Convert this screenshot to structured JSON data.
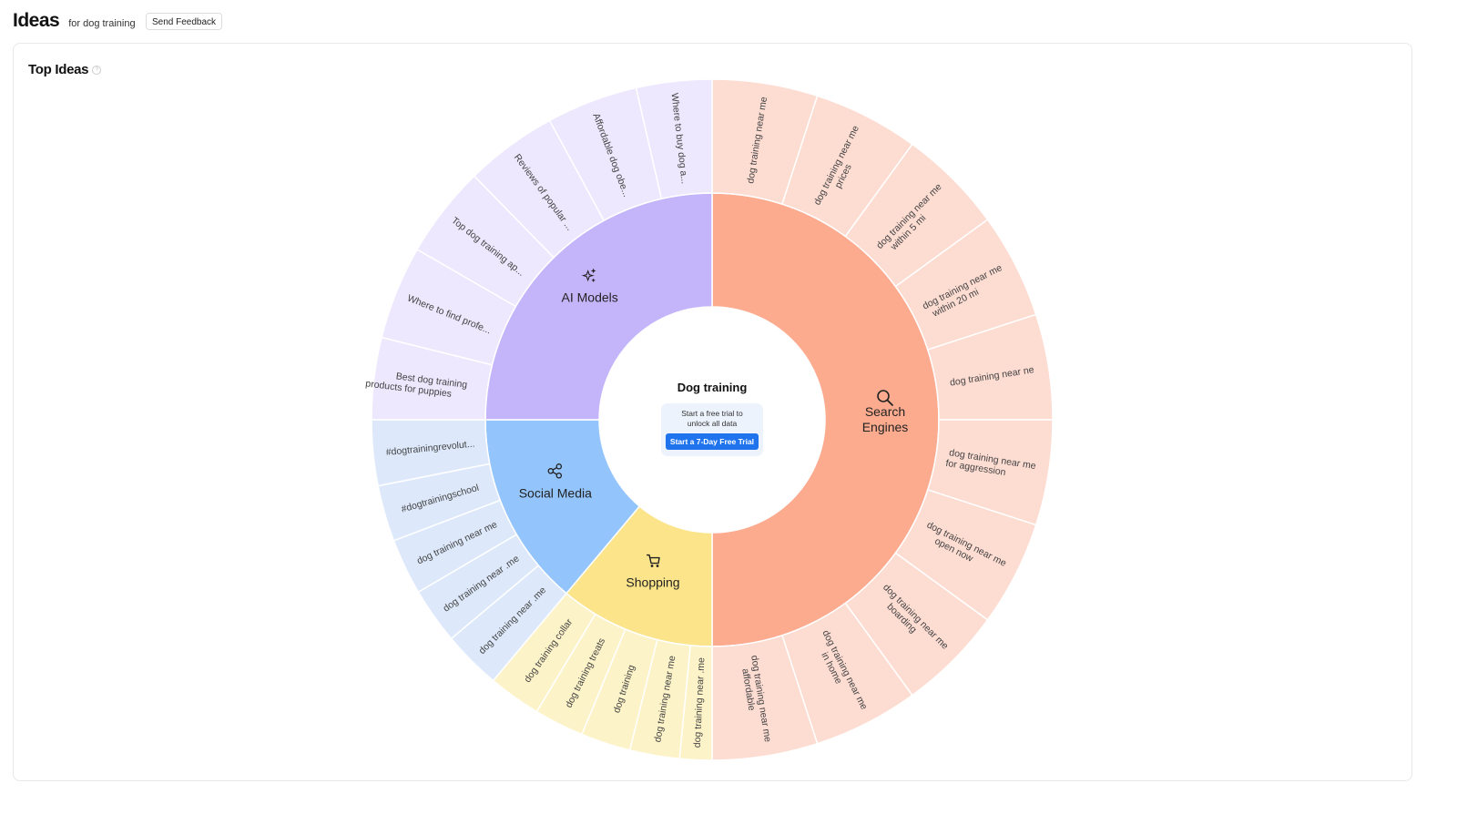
{
  "header": {
    "title": "Ideas",
    "subtitle": "for dog training",
    "feedback_label": "Send Feedback"
  },
  "card": {
    "title": "Top Ideas",
    "help_icon": "question-circle-icon"
  },
  "center": {
    "title": "Dog training",
    "trial_text": "Start a free trial to unlock all data",
    "trial_button": "Start a 7-Day Free Trial",
    "button_color": "#1f74ee"
  },
  "chart_data": {
    "type": "sunburst",
    "title": "",
    "root": "Dog training",
    "categories": [
      {
        "name": "Search Engines",
        "name_lines": [
          "Search",
          "Engines"
        ],
        "icon": "search-icon",
        "color": "#fdab8f",
        "leaf_color": "#fddcd2",
        "children": [
          {
            "lines": [
              "dog training near me"
            ],
            "value": 18
          },
          {
            "lines": [
              "dog training near me",
              "prices"
            ],
            "value": 18
          },
          {
            "lines": [
              "dog training near me",
              "within 5 mi"
            ],
            "value": 18
          },
          {
            "lines": [
              "dog training near me",
              "within 20 mi"
            ],
            "value": 18
          },
          {
            "lines": [
              "dog training near ne"
            ],
            "value": 18
          },
          {
            "lines": [
              "dog training near me",
              "for aggression"
            ],
            "value": 18
          },
          {
            "lines": [
              "dog training near me",
              "open now"
            ],
            "value": 18
          },
          {
            "lines": [
              "dog training near me",
              "boarding"
            ],
            "value": 18
          },
          {
            "lines": [
              "dog training near me",
              "in home"
            ],
            "value": 18
          },
          {
            "lines": [
              "dog training near me",
              "affordable"
            ],
            "value": 18
          }
        ]
      },
      {
        "name": "Shopping",
        "name_lines": [
          "Shopping"
        ],
        "icon": "shopping-cart-icon",
        "color": "#fce48a",
        "leaf_color": "#fdf3c8",
        "children": [
          {
            "lines": [
              "dog training near .me"
            ],
            "value": 5.5
          },
          {
            "lines": [
              "dog training near me"
            ],
            "value": 8.5
          },
          {
            "lines": [
              "dog training"
            ],
            "value": 8.5
          },
          {
            "lines": [
              "dog training treats"
            ],
            "value": 8.5
          },
          {
            "lines": [
              "dog training collar"
            ],
            "value": 9
          }
        ]
      },
      {
        "name": "Social Media",
        "name_lines": [
          "Social Media"
        ],
        "icon": "share-icon",
        "color": "#93c4fb",
        "leaf_color": "#dde9fb",
        "children": [
          {
            "lines": [
              "dog training near .me"
            ],
            "value": 10
          },
          {
            "lines": [
              "dog training near .me"
            ],
            "value": 9.6
          },
          {
            "lines": [
              "dog training near me"
            ],
            "value": 9.6
          },
          {
            "lines": [
              "#dogtrainingschool"
            ],
            "value": 9.6
          },
          {
            "lines": [
              "#dogtrainingrevolut..."
            ],
            "value": 11.2
          }
        ]
      },
      {
        "name": "AI Models",
        "name_lines": [
          "AI Models"
        ],
        "icon": "sparkles-icon",
        "color": "#c4b5fa",
        "leaf_color": "#ede8fd",
        "children": [
          {
            "lines": [
              "Best dog training",
              "products for puppies"
            ],
            "value": 14
          },
          {
            "lines": [
              "Where to find profe..."
            ],
            "value": 16
          },
          {
            "lines": [
              "Top dog training ap..."
            ],
            "value": 15.7
          },
          {
            "lines": [
              "Reviews of popular ..."
            ],
            "value": 15.8
          },
          {
            "lines": [
              "Affordable dog obe..."
            ],
            "value": 15.6
          },
          {
            "lines": [
              "Where to buy dog a..."
            ],
            "value": 12.9
          }
        ]
      }
    ]
  }
}
